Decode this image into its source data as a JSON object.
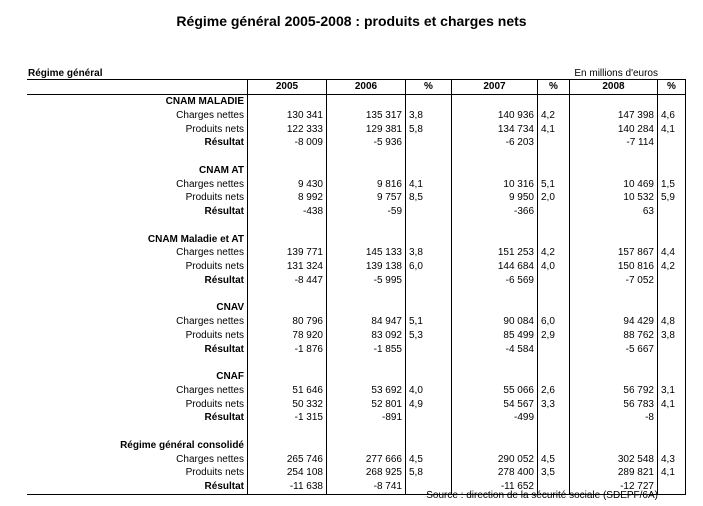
{
  "title": "Régime général 2005-2008 : produits et charges nets",
  "header_left": "Régime général",
  "header_right": "En millions d'euros",
  "columns": [
    "",
    "2005",
    "2006",
    "%",
    "2007",
    "%",
    "2008",
    "%"
  ],
  "rows": [
    {
      "kind": "section",
      "cells": [
        "CNAM  MALADIE",
        "",
        "",
        "",
        "",
        "",
        "",
        ""
      ]
    },
    {
      "kind": "data",
      "cells": [
        "Charges nettes",
        "130 341",
        "135 317",
        "3,8",
        "140 936",
        "4,2",
        "147 398",
        "4,6"
      ]
    },
    {
      "kind": "data",
      "cells": [
        "Produits nets",
        "122 333",
        "129 381",
        "5,8",
        "134 734",
        "4,1",
        "140 284",
        "4,1"
      ]
    },
    {
      "kind": "result",
      "cells": [
        "Résultat",
        "-8 009",
        "-5 936",
        "",
        "-6 203",
        "",
        "-7 114",
        ""
      ]
    },
    {
      "kind": "blank",
      "cells": [
        "",
        "",
        "",
        "",
        "",
        "",
        "",
        ""
      ]
    },
    {
      "kind": "section",
      "cells": [
        "CNAM AT",
        "",
        "",
        "",
        "",
        "",
        "",
        ""
      ]
    },
    {
      "kind": "data",
      "cells": [
        "Charges nettes",
        "9 430",
        "9 816",
        "4,1",
        "10 316",
        "5,1",
        "10 469",
        "1,5"
      ]
    },
    {
      "kind": "data",
      "cells": [
        "Produits nets",
        "8 992",
        "9 757",
        "8,5",
        "9 950",
        "2,0",
        "10 532",
        "5,9"
      ]
    },
    {
      "kind": "result",
      "cells": [
        "Résultat",
        "-438",
        "-59",
        "",
        "-366",
        "",
        "63",
        ""
      ]
    },
    {
      "kind": "blank",
      "cells": [
        "",
        "",
        "",
        "",
        "",
        "",
        "",
        ""
      ]
    },
    {
      "kind": "section",
      "cells": [
        "CNAM Maladie et AT",
        "",
        "",
        "",
        "",
        "",
        "",
        ""
      ]
    },
    {
      "kind": "data",
      "cells": [
        "Charges nettes",
        "139 771",
        "145 133",
        "3,8",
        "151 253",
        "4,2",
        "157 867",
        "4,4"
      ]
    },
    {
      "kind": "data",
      "cells": [
        "Produits nets",
        "131 324",
        "139 138",
        "6,0",
        "144 684",
        "4,0",
        "150 816",
        "4,2"
      ]
    },
    {
      "kind": "result",
      "cells": [
        "Résultat",
        "-8 447",
        "-5 995",
        "",
        "-6 569",
        "",
        "-7 052",
        ""
      ]
    },
    {
      "kind": "blank",
      "cells": [
        "",
        "",
        "",
        "",
        "",
        "",
        "",
        ""
      ]
    },
    {
      "kind": "section",
      "cells": [
        "CNAV",
        "",
        "",
        "",
        "",
        "",
        "",
        ""
      ]
    },
    {
      "kind": "data",
      "cells": [
        "Charges nettes",
        "80 796",
        "84 947",
        "5,1",
        "90 084",
        "6,0",
        "94 429",
        "4,8"
      ]
    },
    {
      "kind": "data",
      "cells": [
        "Produits nets",
        "78 920",
        "83 092",
        "5,3",
        "85 499",
        "2,9",
        "88 762",
        "3,8"
      ]
    },
    {
      "kind": "result",
      "cells": [
        "Résultat",
        "-1 876",
        "-1 855",
        "",
        "-4 584",
        "",
        "-5 667",
        ""
      ]
    },
    {
      "kind": "blank",
      "cells": [
        "",
        "",
        "",
        "",
        "",
        "",
        "",
        ""
      ]
    },
    {
      "kind": "section",
      "cells": [
        "CNAF",
        "",
        "",
        "",
        "",
        "",
        "",
        ""
      ]
    },
    {
      "kind": "data",
      "cells": [
        "Charges nettes",
        "51 646",
        "53 692",
        "4,0",
        "55 066",
        "2,6",
        "56 792",
        "3,1"
      ]
    },
    {
      "kind": "data",
      "cells": [
        "Produits nets",
        "50 332",
        "52 801",
        "4,9",
        "54 567",
        "3,3",
        "56 783",
        "4,1"
      ]
    },
    {
      "kind": "result",
      "cells": [
        "Résultat",
        "-1 315",
        "-891",
        "",
        "-499",
        "",
        "-8",
        ""
      ]
    },
    {
      "kind": "blank",
      "cells": [
        "",
        "",
        "",
        "",
        "",
        "",
        "",
        ""
      ]
    },
    {
      "kind": "section",
      "cells": [
        "Régime général consolidé",
        "",
        "",
        "",
        "",
        "",
        "",
        ""
      ]
    },
    {
      "kind": "data",
      "cells": [
        "Charges nettes",
        "265 746",
        "277 666",
        "4,5",
        "290 052",
        "4,5",
        "302 548",
        "4,3"
      ]
    },
    {
      "kind": "data",
      "cells": [
        "Produits nets",
        "254 108",
        "268 925",
        "5,8",
        "278 400",
        "3,5",
        "289 821",
        "4,1"
      ]
    },
    {
      "kind": "result",
      "cells": [
        "Résultat",
        "-11 638",
        "-8 741",
        "",
        "-11 652",
        "",
        "-12 727",
        ""
      ]
    }
  ],
  "source": "Source : direction de la sécurité sociale (SDEPF/6A)"
}
